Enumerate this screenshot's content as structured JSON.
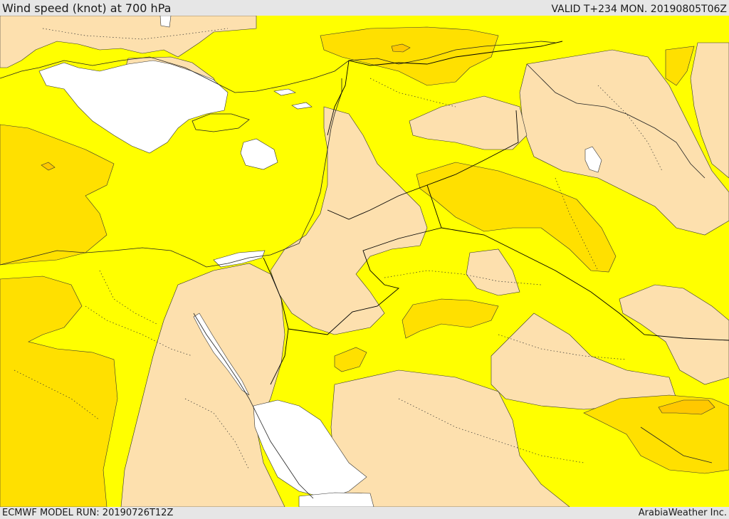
{
  "header": {
    "title": "Wind speed (knot) at 700 hPa",
    "valid": "VALID T+234 MON. 20190805T06Z"
  },
  "footer": {
    "model_run": "ECMWF MODEL RUN: 20190726T12Z",
    "credit": "ArabiaWeather Inc."
  },
  "palette": {
    "calm": "#ffffff",
    "light": "#fde0ae",
    "moderate": "#ffff00",
    "fresh": "#ffe000",
    "strong": "#ffc800",
    "border": "#000000"
  }
}
